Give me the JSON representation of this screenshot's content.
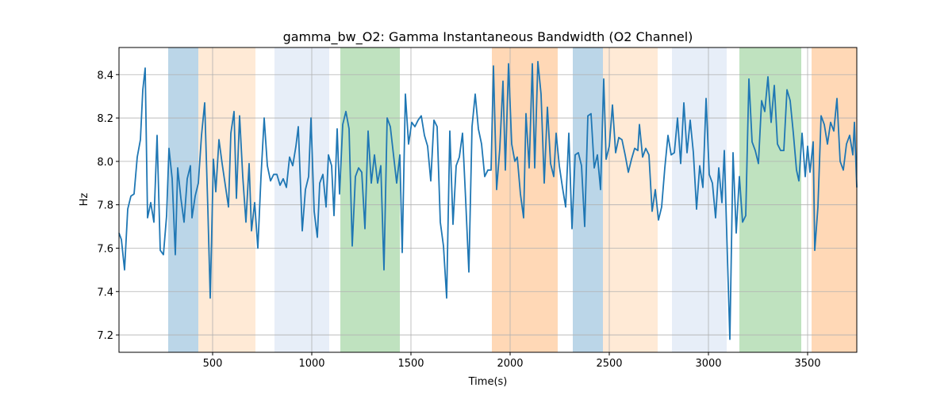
{
  "chart_data": {
    "type": "line",
    "title": "gamma_bw_O2: Gamma Instantaneous Bandwidth (O2 Channel)",
    "xlabel": "Time(s)",
    "ylabel": "Hz",
    "xlim": [
      28,
      3748
    ],
    "ylim": [
      7.12,
      8.525
    ],
    "xticks": [
      500,
      1000,
      1500,
      2000,
      2500,
      3000,
      3500
    ],
    "yticks": [
      7.2,
      7.4,
      7.6,
      7.8,
      {
        "value": 8.0,
        "label": "8.0"
      },
      8.2,
      8.4
    ],
    "grid": true,
    "spans": [
      {
        "start": 276,
        "end": 428,
        "color": "#1f77b4",
        "alpha": 0.3
      },
      {
        "start": 428,
        "end": 716,
        "color": "#ffbb78",
        "alpha": 0.3
      },
      {
        "start": 812,
        "end": 1088,
        "color": "#aec7e8",
        "alpha": 0.3
      },
      {
        "start": 1144,
        "end": 1444,
        "color": "#2ca02c",
        "alpha": 0.3
      },
      {
        "start": 1908,
        "end": 2240,
        "color": "#ff7f0e",
        "alpha": 0.3
      },
      {
        "start": 2316,
        "end": 2468,
        "color": "#1f77b4",
        "alpha": 0.3
      },
      {
        "start": 2468,
        "end": 2744,
        "color": "#ffbb78",
        "alpha": 0.3
      },
      {
        "start": 2816,
        "end": 3092,
        "color": "#aec7e8",
        "alpha": 0.3
      },
      {
        "start": 3156,
        "end": 3468,
        "color": "#2ca02c",
        "alpha": 0.3
      },
      {
        "start": 3520,
        "end": 3748,
        "color": "#ff7f0e",
        "alpha": 0.3
      }
    ],
    "x": [
      28,
      40,
      56,
      72,
      88,
      104,
      120,
      136,
      148,
      160,
      172,
      188,
      204,
      220,
      236,
      252,
      268,
      280,
      296,
      312,
      324,
      340,
      356,
      372,
      388,
      396,
      412,
      428,
      444,
      460,
      476,
      488,
      504,
      516,
      532,
      548,
      564,
      580,
      592,
      608,
      620,
      636,
      652,
      668,
      684,
      696,
      712,
      728,
      744,
      760,
      776,
      792,
      808,
      824,
      840,
      856,
      872,
      888,
      904,
      920,
      932,
      952,
      968,
      984,
      996,
      1012,
      1028,
      1040,
      1056,
      1072,
      1084,
      1100,
      1112,
      1128,
      1140,
      1156,
      1172,
      1188,
      1204,
      1220,
      1236,
      1252,
      1268,
      1284,
      1300,
      1316,
      1332,
      1348,
      1364,
      1380,
      1396,
      1412,
      1428,
      1444,
      1456,
      1472,
      1488,
      1504,
      1520,
      1536,
      1552,
      1568,
      1584,
      1600,
      1616,
      1632,
      1648,
      1664,
      1680,
      1696,
      1712,
      1728,
      1744,
      1760,
      1776,
      1792,
      1808,
      1824,
      1840,
      1856,
      1872,
      1888,
      1904,
      1916,
      1932,
      1948,
      1964,
      1976,
      1992,
      2008,
      2024,
      2036,
      2052,
      2068,
      2080,
      2096,
      2112,
      2124,
      2140,
      2156,
      2172,
      2188,
      2204,
      2220,
      2232,
      2248,
      2264,
      2280,
      2296,
      2312,
      2328,
      2344,
      2360,
      2376,
      2392,
      2408,
      2424,
      2440,
      2456,
      2472,
      2484,
      2500,
      2516,
      2532,
      2548,
      2564,
      2580,
      2596,
      2612,
      2628,
      2644,
      2652,
      2668,
      2684,
      2700,
      2716,
      2732,
      2748,
      2764,
      2780,
      2796,
      2812,
      2828,
      2844,
      2860,
      2876,
      2892,
      2908,
      2924,
      2940,
      2956,
      2972,
      2988,
      3004,
      3020,
      3036,
      3052,
      3068,
      3080,
      3096,
      3108,
      3124,
      3140,
      3156,
      3172,
      3188,
      3204,
      3220,
      3236,
      3252,
      3268,
      3284,
      3300,
      3316,
      3332,
      3348,
      3364,
      3380,
      3396,
      3412,
      3428,
      3444,
      3456,
      3472,
      3488,
      3500,
      3512,
      3528,
      3536,
      3552,
      3568,
      3584,
      3600,
      3616,
      3632,
      3648,
      3664,
      3680,
      3696,
      3712,
      3728,
      3736,
      3748
    ],
    "series": [
      {
        "color": "#1f77b4",
        "values": [
          7.67,
          7.64,
          7.5,
          7.78,
          7.84,
          7.85,
          8.02,
          8.1,
          8.33,
          8.43,
          7.74,
          7.81,
          7.72,
          8.12,
          7.59,
          7.57,
          7.75,
          8.06,
          7.92,
          7.57,
          7.97,
          7.83,
          7.72,
          7.92,
          7.98,
          7.74,
          7.84,
          7.9,
          8.12,
          8.27,
          7.78,
          7.37,
          8.01,
          7.86,
          8.1,
          7.99,
          7.89,
          7.79,
          8.13,
          8.23,
          7.83,
          8.21,
          7.93,
          7.72,
          7.99,
          7.68,
          7.81,
          7.6,
          7.93,
          8.2,
          7.98,
          7.91,
          7.94,
          7.94,
          7.89,
          7.92,
          7.88,
          8.02,
          7.98,
          8.07,
          8.16,
          7.68,
          7.87,
          7.93,
          8.2,
          7.77,
          7.65,
          7.9,
          7.94,
          7.79,
          8.03,
          7.98,
          7.75,
          8.15,
          7.85,
          8.17,
          8.23,
          8.15,
          7.61,
          7.93,
          7.97,
          7.95,
          7.69,
          8.14,
          7.9,
          8.03,
          7.9,
          7.98,
          7.5,
          8.2,
          8.16,
          8.03,
          7.9,
          8.03,
          7.58,
          8.31,
          8.08,
          8.18,
          8.16,
          8.19,
          8.21,
          8.12,
          8.07,
          7.91,
          8.19,
          8.16,
          7.72,
          7.61,
          7.37,
          8.14,
          7.71,
          7.98,
          8.02,
          8.13,
          7.82,
          7.49,
          8.16,
          8.31,
          8.15,
          8.08,
          7.93,
          7.96,
          7.96,
          8.44,
          7.87,
          8.06,
          8.37,
          7.96,
          8.45,
          8.08,
          8.0,
          8.02,
          7.85,
          7.74,
          8.22,
          7.97,
          8.45,
          7.97,
          8.46,
          8.31,
          7.9,
          8.25,
          7.99,
          7.93,
          8.13,
          7.98,
          7.88,
          7.79,
          8.13,
          7.69,
          8.03,
          8.04,
          7.98,
          7.7,
          8.21,
          8.22,
          7.97,
          8.03,
          7.87,
          8.38,
          8.01,
          8.07,
          8.26,
          8.04,
          8.11,
          8.1,
          8.03,
          7.95,
          8.01,
          8.06,
          8.05,
          8.17,
          8.02,
          8.06,
          8.03,
          7.77,
          7.87,
          7.73,
          7.79,
          7.97,
          8.12,
          8.03,
          8.04,
          8.2,
          7.99,
          8.27,
          8.04,
          8.19,
          8.04,
          7.78,
          7.98,
          7.88,
          8.29,
          7.94,
          7.9,
          7.74,
          7.97,
          7.81,
          8.05,
          7.55,
          7.18,
          8.04,
          7.67,
          7.93,
          7.72,
          7.75,
          8.38,
          8.09,
          8.05,
          7.99,
          8.28,
          8.23,
          8.39,
          8.18,
          8.35,
          8.08,
          8.05,
          8.05,
          8.33,
          8.28,
          8.13,
          7.96,
          7.91,
          8.13,
          7.93,
          8.07,
          7.95,
          8.09,
          7.59,
          7.79,
          8.21,
          8.17,
          8.08,
          8.18,
          8.14,
          8.29,
          8.0,
          7.96,
          8.08,
          8.12,
          8.03,
          8.18,
          7.88
        ]
      }
    ]
  }
}
